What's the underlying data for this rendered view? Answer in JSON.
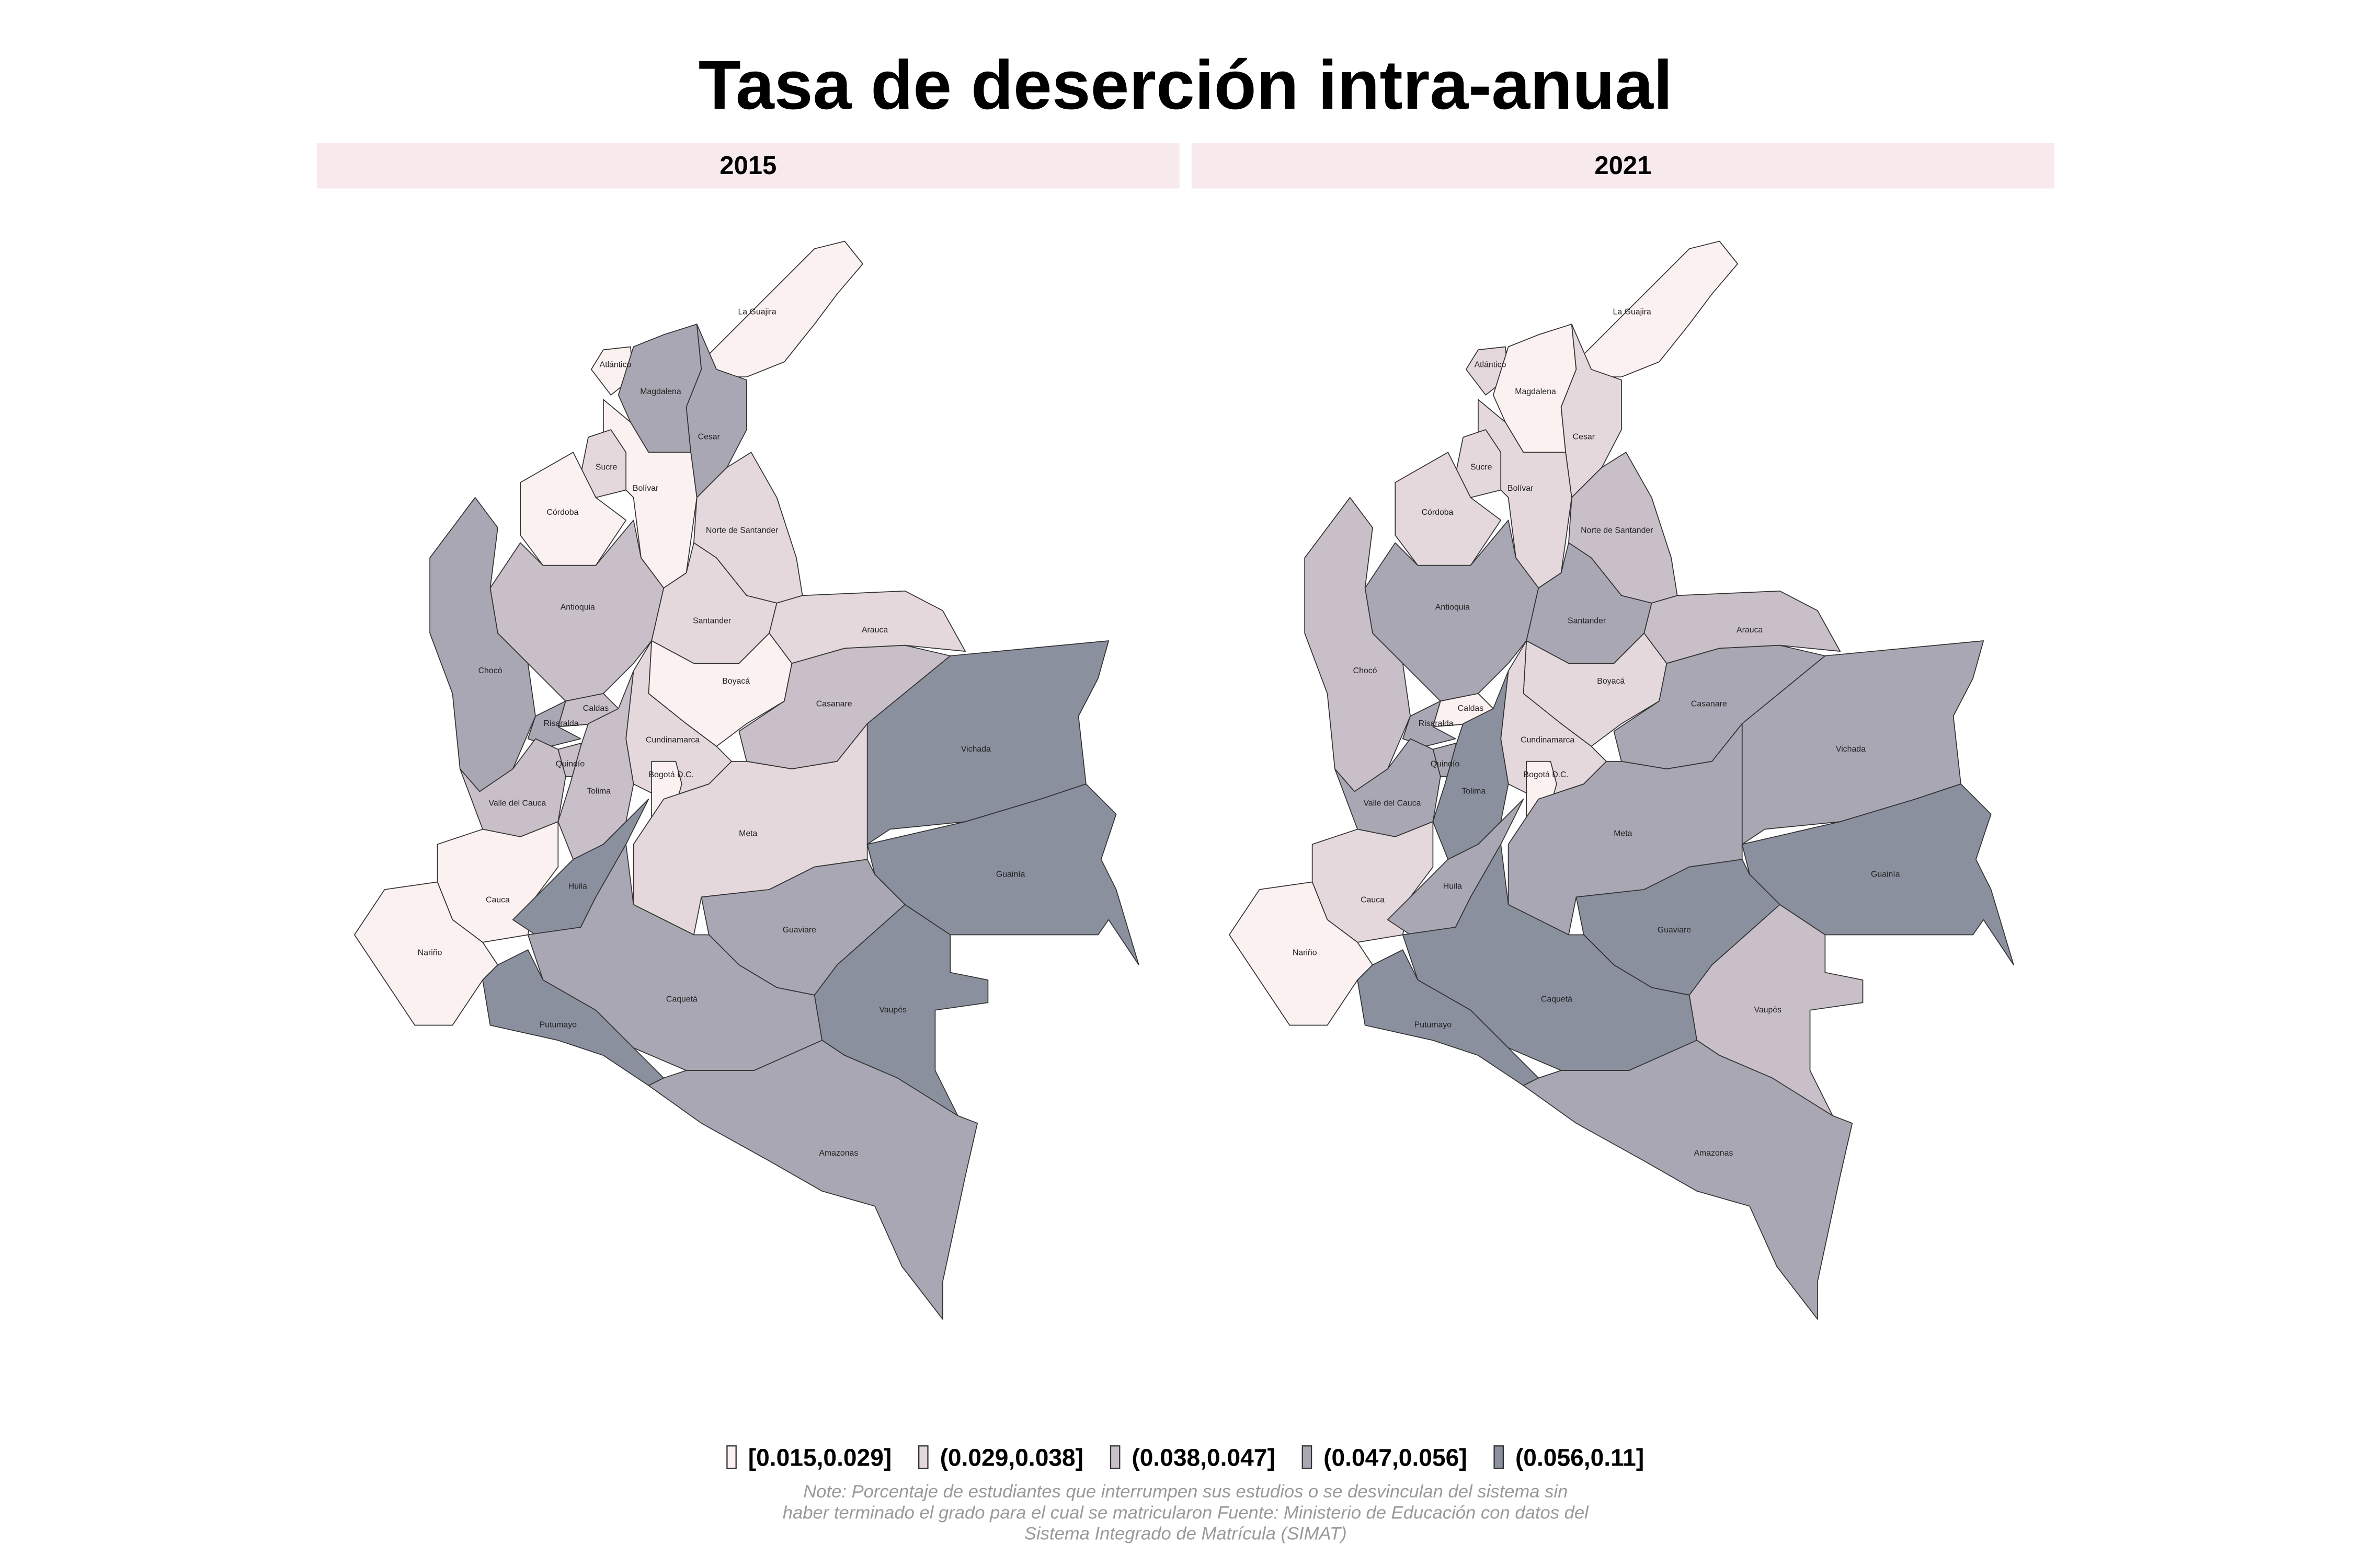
{
  "title": "Tasa de deserción intra-anual",
  "legend": {
    "items": [
      {
        "label": "[0.015,0.029]",
        "color": "#fcf1f1"
      },
      {
        "label": "(0.029,0.038]",
        "color": "#e4d8dc"
      },
      {
        "label": "(0.038,0.047]",
        "color": "#c8bfc8"
      },
      {
        "label": "(0.047,0.056]",
        "color": "#a9a7b3"
      },
      {
        "label": "(0.056,0.11]",
        "color": "#8a909e"
      }
    ]
  },
  "panels": [
    {
      "label": "2015",
      "regions": [
        {
          "name": "La Guajira",
          "class": "[0.015,0.029]"
        },
        {
          "name": "Atlántico",
          "class": "[0.015,0.029]"
        },
        {
          "name": "Magdalena",
          "class": "(0.047,0.056]"
        },
        {
          "name": "Cesar",
          "class": "(0.047,0.056]"
        },
        {
          "name": "Bolívar",
          "class": "[0.015,0.029]"
        },
        {
          "name": "Sucre",
          "class": "(0.029,0.038]"
        },
        {
          "name": "Córdoba",
          "class": "[0.015,0.029]"
        },
        {
          "name": "Norte de Santander",
          "class": "(0.029,0.038]"
        },
        {
          "name": "Antioquia",
          "class": "(0.038,0.047]"
        },
        {
          "name": "Santander",
          "class": "(0.029,0.038]"
        },
        {
          "name": "Arauca",
          "class": "(0.029,0.038]"
        },
        {
          "name": "Chocó",
          "class": "(0.047,0.056]"
        },
        {
          "name": "Boyacá",
          "class": "[0.015,0.029]"
        },
        {
          "name": "Casanare",
          "class": "(0.038,0.047]"
        },
        {
          "name": "Caldas",
          "class": "(0.038,0.047]"
        },
        {
          "name": "Risaralda",
          "class": "(0.047,0.056]"
        },
        {
          "name": "Quindío",
          "class": "(0.038,0.047]"
        },
        {
          "name": "Cundinamarca",
          "class": "(0.029,0.038]"
        },
        {
          "name": "Bogotá D.C.",
          "class": "[0.015,0.029]"
        },
        {
          "name": "Tolima",
          "class": "(0.038,0.047]"
        },
        {
          "name": "Valle del Cauca",
          "class": "(0.038,0.047]"
        },
        {
          "name": "Vichada",
          "class": "(0.056,0.11]"
        },
        {
          "name": "Meta",
          "class": "(0.029,0.038]"
        },
        {
          "name": "Guainía",
          "class": "(0.056,0.11]"
        },
        {
          "name": "Cauca",
          "class": "[0.015,0.029]"
        },
        {
          "name": "Huila",
          "class": "(0.056,0.11]"
        },
        {
          "name": "Nariño",
          "class": "[0.015,0.029]"
        },
        {
          "name": "Guaviare",
          "class": "(0.047,0.056]"
        },
        {
          "name": "Caquetá",
          "class": "(0.047,0.056]"
        },
        {
          "name": "Putumayo",
          "class": "(0.056,0.11]"
        },
        {
          "name": "Vaupés",
          "class": "(0.056,0.11]"
        },
        {
          "name": "Amazonas",
          "class": "(0.047,0.056]"
        }
      ]
    },
    {
      "label": "2021",
      "regions": [
        {
          "name": "La Guajira",
          "class": "[0.015,0.029]"
        },
        {
          "name": "Atlántico",
          "class": "(0.029,0.038]"
        },
        {
          "name": "Magdalena",
          "class": "[0.015,0.029]"
        },
        {
          "name": "Cesar",
          "class": "(0.029,0.038]"
        },
        {
          "name": "Bolívar",
          "class": "(0.029,0.038]"
        },
        {
          "name": "Sucre",
          "class": "(0.029,0.038]"
        },
        {
          "name": "Córdoba",
          "class": "(0.029,0.038]"
        },
        {
          "name": "Norte de Santander",
          "class": "(0.038,0.047]"
        },
        {
          "name": "Antioquia",
          "class": "(0.047,0.056]"
        },
        {
          "name": "Santander",
          "class": "(0.047,0.056]"
        },
        {
          "name": "Arauca",
          "class": "(0.038,0.047]"
        },
        {
          "name": "Chocó",
          "class": "(0.038,0.047]"
        },
        {
          "name": "Boyacá",
          "class": "(0.029,0.038]"
        },
        {
          "name": "Casanare",
          "class": "(0.047,0.056]"
        },
        {
          "name": "Caldas",
          "class": "[0.015,0.029]"
        },
        {
          "name": "Risaralda",
          "class": "(0.047,0.056]"
        },
        {
          "name": "Quindío",
          "class": "(0.047,0.056]"
        },
        {
          "name": "Cundinamarca",
          "class": "(0.029,0.038]"
        },
        {
          "name": "Bogotá D.C.",
          "class": "[0.015,0.029]"
        },
        {
          "name": "Tolima",
          "class": "(0.056,0.11]"
        },
        {
          "name": "Valle del Cauca",
          "class": "(0.047,0.056]"
        },
        {
          "name": "Vichada",
          "class": "(0.047,0.056]"
        },
        {
          "name": "Meta",
          "class": "(0.047,0.056]"
        },
        {
          "name": "Guainía",
          "class": "(0.056,0.11]"
        },
        {
          "name": "Cauca",
          "class": "(0.029,0.038]"
        },
        {
          "name": "Huila",
          "class": "(0.047,0.056]"
        },
        {
          "name": "Nariño",
          "class": "[0.015,0.029]"
        },
        {
          "name": "Guaviare",
          "class": "(0.056,0.11]"
        },
        {
          "name": "Caquetá",
          "class": "(0.056,0.11]"
        },
        {
          "name": "Putumayo",
          "class": "(0.056,0.11]"
        },
        {
          "name": "Vaupés",
          "class": "(0.038,0.047]"
        },
        {
          "name": "Amazonas",
          "class": "(0.047,0.056]"
        }
      ]
    }
  ],
  "note_lines": [
    "Note: Porcentaje de estudiantes que interrumpen sus estudios o se desvinculan del sistema sin",
    "haber terminado el grado para el cual se matricularon Fuente: Ministerio de Educación con datos del",
    "Sistema Integrado de Matrícula (SIMAT)"
  ]
}
